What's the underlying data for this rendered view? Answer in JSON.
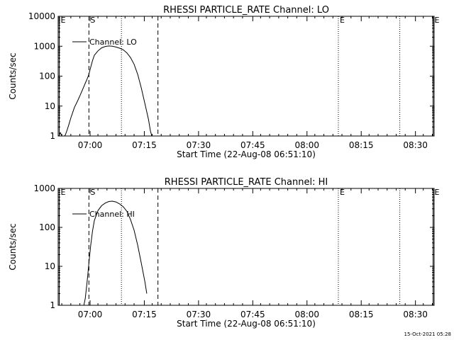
{
  "footer": {
    "timestamp": "15-Oct-2021 05:28"
  },
  "chart_data": [
    {
      "type": "line",
      "title": "RHESSI PARTICLE_RATE Channel: LO",
      "xlabel": "Start Time (22-Aug-08 06:51:10)",
      "ylabel": "Counts/sec",
      "yscale": "log",
      "xlim_minutes": [
        0,
        104
      ],
      "ylim": [
        1,
        10000
      ],
      "x_tick_labels": [
        "07:00",
        "07:15",
        "07:30",
        "07:45",
        "08:00",
        "08:15",
        "08:30"
      ],
      "y_tick_labels": [
        "1",
        "10",
        "100",
        "1000",
        "10000"
      ],
      "legend": {
        "label": "Channel: LO",
        "position": "top-left"
      },
      "markers": [
        {
          "label": "E",
          "x_minutes": 0.3,
          "style": "solid"
        },
        {
          "label": "S",
          "x_minutes": 8.5,
          "style": "dashed"
        },
        {
          "label": "",
          "x_minutes": 17.5,
          "style": "dotted"
        },
        {
          "label": "",
          "x_minutes": 27.6,
          "style": "dashed"
        },
        {
          "label": "E",
          "x_minutes": 77.5,
          "style": "dotted"
        },
        {
          "label": "",
          "x_minutes": 94.5,
          "style": "dotted"
        },
        {
          "label": "E",
          "x_minutes": 103.7,
          "style": "solid"
        }
      ],
      "series": [
        {
          "name": "Channel: LO",
          "points": [
            [
              0.2,
              1
            ],
            [
              0.6,
              1.3
            ],
            [
              1.0,
              1
            ],
            [
              1.5,
              0.9
            ],
            [
              2.0,
              1.1
            ],
            [
              2.5,
              1.6
            ],
            [
              3.0,
              2.5
            ],
            [
              3.5,
              4
            ],
            [
              4.0,
              6
            ],
            [
              4.5,
              9
            ],
            [
              5.0,
              12
            ],
            [
              5.5,
              16
            ],
            [
              6.0,
              22
            ],
            [
              6.5,
              30
            ],
            [
              7.0,
              42
            ],
            [
              7.5,
              58
            ],
            [
              8.0,
              80
            ],
            [
              8.5,
              115
            ],
            [
              9.0,
              200
            ],
            [
              9.5,
              330
            ],
            [
              10.0,
              500
            ],
            [
              11.0,
              700
            ],
            [
              12.0,
              880
            ],
            [
              13.0,
              980
            ],
            [
              14.0,
              1020
            ],
            [
              15.0,
              1000
            ],
            [
              16.0,
              940
            ],
            [
              17.0,
              860
            ],
            [
              18.0,
              760
            ],
            [
              19.0,
              600
            ],
            [
              20.0,
              420
            ],
            [
              21.0,
              250
            ],
            [
              22.0,
              115
            ],
            [
              23.0,
              40
            ],
            [
              24.0,
              12
            ],
            [
              25.0,
              3.5
            ],
            [
              25.5,
              1.5
            ],
            [
              26.0,
              0.9
            ]
          ]
        }
      ]
    },
    {
      "type": "line",
      "title": "RHESSI PARTICLE_RATE Channel: HI",
      "xlabel": "Start Time (22-Aug-08 06:51:10)",
      "ylabel": "Counts/sec",
      "yscale": "log",
      "xlim_minutes": [
        0,
        104
      ],
      "ylim": [
        1,
        1000
      ],
      "x_tick_labels": [
        "07:00",
        "07:15",
        "07:30",
        "07:45",
        "08:00",
        "08:15",
        "08:30"
      ],
      "y_tick_labels": [
        "1",
        "10",
        "100",
        "1000"
      ],
      "legend": {
        "label": "Channel: HI",
        "position": "top-left"
      },
      "markers": [
        {
          "label": "E",
          "x_minutes": 0.3,
          "style": "solid"
        },
        {
          "label": "S",
          "x_minutes": 8.5,
          "style": "dashed"
        },
        {
          "label": "",
          "x_minutes": 17.5,
          "style": "dotted"
        },
        {
          "label": "",
          "x_minutes": 27.6,
          "style": "dashed"
        },
        {
          "label": "E",
          "x_minutes": 77.5,
          "style": "dotted"
        },
        {
          "label": "",
          "x_minutes": 94.5,
          "style": "dotted"
        },
        {
          "label": "E",
          "x_minutes": 103.7,
          "style": "solid"
        }
      ],
      "series": [
        {
          "name": "Channel: HI",
          "points": [
            [
              7.0,
              0.9
            ],
            [
              7.5,
              1.5
            ],
            [
              8.0,
              4
            ],
            [
              8.5,
              12
            ],
            [
              9.0,
              35
            ],
            [
              9.5,
              80
            ],
            [
              10.0,
              150
            ],
            [
              11.0,
              270
            ],
            [
              12.0,
              360
            ],
            [
              13.0,
              420
            ],
            [
              14.0,
              460
            ],
            [
              15.0,
              470
            ],
            [
              16.0,
              450
            ],
            [
              17.0,
              400
            ],
            [
              18.0,
              340
            ],
            [
              19.0,
              260
            ],
            [
              20.0,
              160
            ],
            [
              21.0,
              85
            ],
            [
              22.0,
              35
            ],
            [
              23.0,
              12
            ],
            [
              24.0,
              4
            ],
            [
              24.5,
              2
            ]
          ]
        }
      ]
    }
  ]
}
